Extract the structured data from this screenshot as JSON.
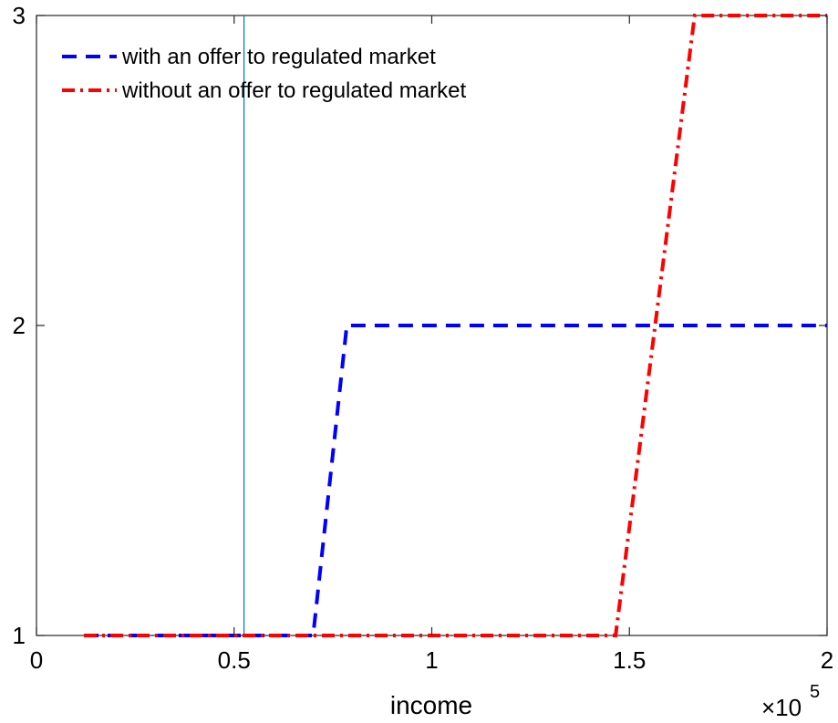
{
  "chart_data": {
    "type": "line",
    "title": "",
    "xlabel": "income",
    "ylabel": "",
    "x_multiplier_label": "×10",
    "x_multiplier_exp": "5",
    "xlim": [
      0,
      2
    ],
    "ylim": [
      1,
      3
    ],
    "x_ticks": [
      0,
      0.5,
      1,
      1.5,
      2
    ],
    "x_tick_labels": [
      "0",
      "0.5",
      "1",
      "1.5",
      "2"
    ],
    "y_ticks": [
      1,
      2,
      3
    ],
    "y_tick_labels": [
      "1",
      "2",
      "3"
    ],
    "grid": false,
    "legend_position": "top-left",
    "vertical_line": {
      "x": 0.525,
      "color": "#0072BD"
    },
    "series": [
      {
        "name": "with an offer to regulated market",
        "color": "#0000FF",
        "style": "dashed",
        "x": [
          0.12,
          0.7,
          0.785,
          2.0
        ],
        "y": [
          1,
          1,
          2,
          2
        ]
      },
      {
        "name": "without an offer to regulated market",
        "color": "#FF0000",
        "style": "dashdot",
        "x": [
          0.12,
          1.465,
          1.665,
          2.0
        ],
        "y": [
          1,
          1,
          3,
          3
        ]
      }
    ]
  }
}
